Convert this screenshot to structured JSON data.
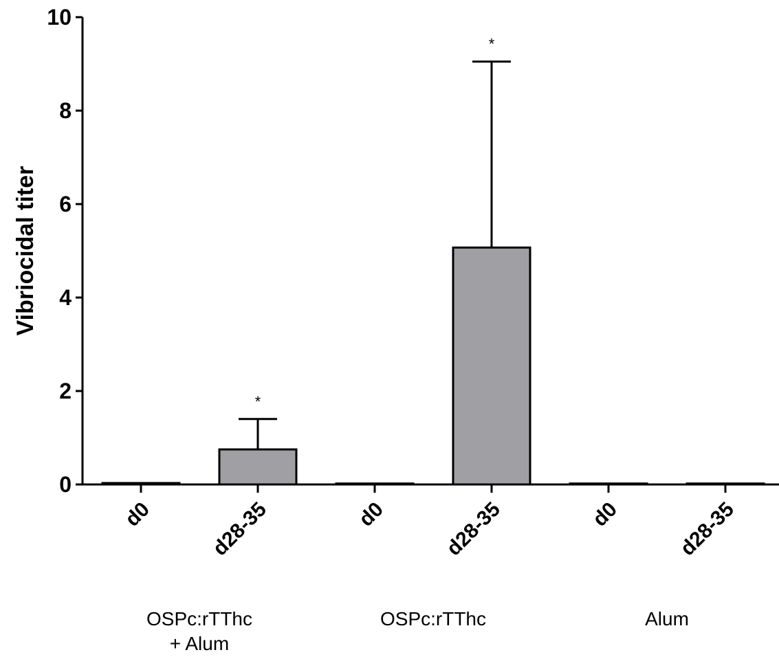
{
  "chart_data": {
    "type": "bar",
    "y_label": "Vibriocidal titer",
    "categories": [
      "d0",
      "d28-35",
      "d0",
      "d28-35",
      "d0",
      "d28-35"
    ],
    "groups": [
      {
        "lines": [
          "OSPc:rTThc",
          "+ Alum"
        ]
      },
      {
        "lines": [
          "OSPc:rTThc"
        ]
      },
      {
        "lines": [
          "Alum"
        ]
      }
    ],
    "series": [
      {
        "color": "#a09fa4",
        "values": [
          0.03,
          0.75,
          0.02,
          5.07,
          0.02,
          0.02
        ],
        "errors": [
          null,
          0.65,
          null,
          3.98,
          null,
          null
        ],
        "annotations": [
          null,
          "*",
          null,
          "*",
          null,
          null
        ]
      }
    ],
    "ylim": [
      0,
      10
    ],
    "yticks": [
      0,
      2,
      4,
      6,
      8,
      10
    ]
  }
}
